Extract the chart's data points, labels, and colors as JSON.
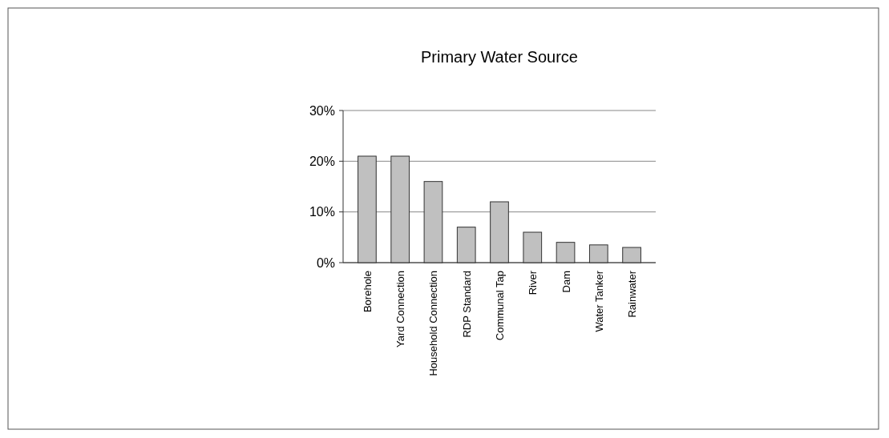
{
  "chart_data": {
    "type": "bar",
    "title": "Primary Water Source",
    "categories": [
      "Borehole",
      "Yard Connection",
      "Household Connection",
      "RDP Standard",
      "Communal Tap",
      "River",
      "Dam",
      "Water Tanker",
      "Rainwater"
    ],
    "values": [
      21,
      21,
      16,
      7,
      12,
      6,
      4,
      3.5,
      3
    ],
    "color": "#c0c0c0",
    "ylim": [
      0,
      30
    ],
    "yticks": [
      {
        "value": 0,
        "label": "0%"
      },
      {
        "value": 10,
        "label": "10%"
      },
      {
        "value": 20,
        "label": "20%"
      },
      {
        "value": 30,
        "label": "30%"
      }
    ],
    "grid": "y"
  }
}
